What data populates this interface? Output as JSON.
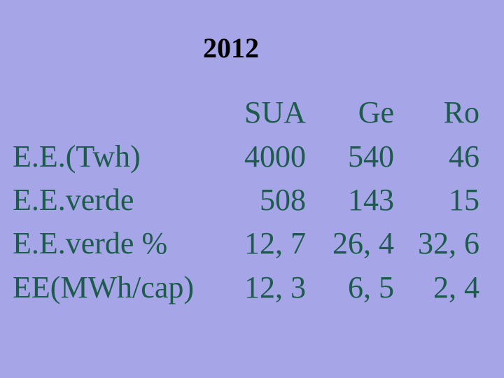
{
  "title": "2012",
  "table": {
    "header": [
      "SUA",
      "Ge",
      "Ro"
    ],
    "rows": [
      {
        "label": "E.E.(Twh)",
        "values": [
          "4000",
          "540",
          "46"
        ]
      },
      {
        "label": "E.E.verde",
        "values": [
          "508",
          "143",
          "15"
        ]
      },
      {
        "label": "E.E.verde %",
        "values": [
          "12, 7",
          "26, 4",
          "32, 6"
        ]
      },
      {
        "label": "EE(MWh/cap)",
        "values": [
          "12, 3",
          "6, 5",
          "2, 4"
        ]
      }
    ]
  }
}
